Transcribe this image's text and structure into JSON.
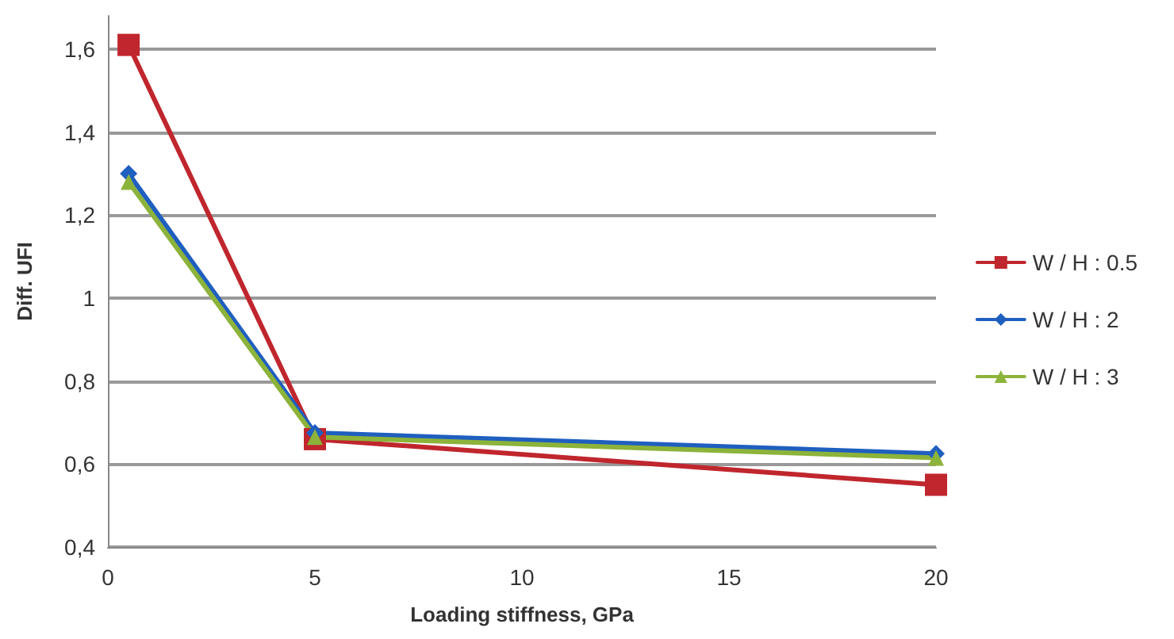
{
  "chart_data": {
    "type": "line",
    "xlabel": "Loading stiffness, GPa",
    "ylabel": "Diff. UFI",
    "x": [
      0.5,
      5,
      20
    ],
    "series": [
      {
        "name": "W / H : 0.5",
        "color": "#c0262d",
        "marker": "square",
        "values": [
          1.61,
          0.66,
          0.55
        ]
      },
      {
        "name": "W / H : 2",
        "color": "#1f5fbf",
        "marker": "diamond",
        "values": [
          1.3,
          0.675,
          0.625
        ]
      },
      {
        "name": "W / H : 3",
        "color": "#8cb33a",
        "marker": "triangle",
        "values": [
          1.28,
          0.665,
          0.615
        ]
      }
    ],
    "xlim": [
      0,
      20
    ],
    "xticks": [
      0,
      5,
      10,
      15,
      20
    ],
    "ylim": [
      0.4,
      1.68
    ],
    "yticks": [
      {
        "value": 0.4,
        "label": "0,4"
      },
      {
        "value": 0.6,
        "label": "0,6"
      },
      {
        "value": 0.8,
        "label": "0,8"
      },
      {
        "value": 1,
        "label": "1"
      },
      {
        "value": 1.2,
        "label": "1,2"
      },
      {
        "value": 1.4,
        "label": "1,4"
      },
      {
        "value": 1.6,
        "label": "1,6"
      }
    ],
    "grid": "y",
    "legend": "right",
    "line_style": "solid"
  }
}
